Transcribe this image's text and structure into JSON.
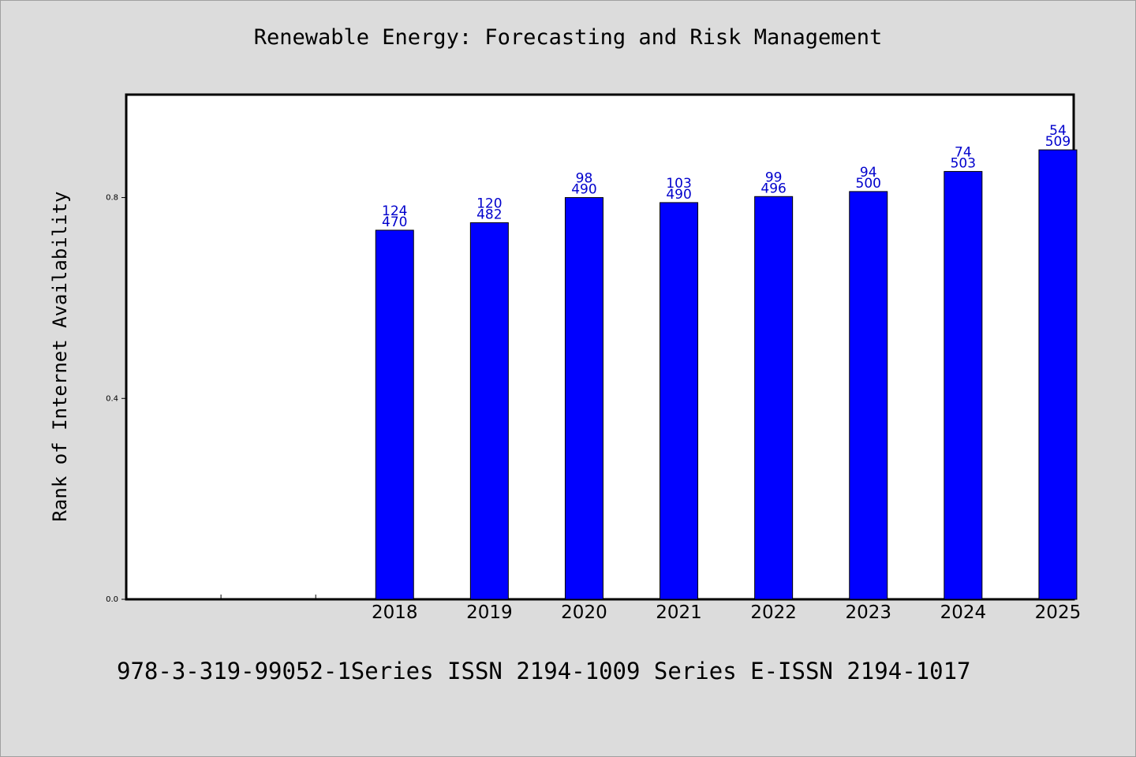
{
  "chart_data": {
    "type": "bar",
    "title": "Renewable Energy: Forecasting and Risk Management",
    "xlabel": "",
    "ylabel": "Rank of Internet Availability",
    "categories": [
      "",
      "",
      "2018",
      "2019",
      "2020",
      "2021",
      "2022",
      "2023",
      "2024",
      "2025"
    ],
    "values": [
      null,
      null,
      0.735,
      0.75,
      0.8,
      0.79,
      0.802,
      0.812,
      0.852,
      0.895
    ],
    "bar_labels": [
      {
        "top": "",
        "bottom": ""
      },
      {
        "top": "",
        "bottom": ""
      },
      {
        "top": "124",
        "bottom": "470"
      },
      {
        "top": "120",
        "bottom": "482"
      },
      {
        "top": "98",
        "bottom": "490"
      },
      {
        "top": "103",
        "bottom": "490"
      },
      {
        "top": "99",
        "bottom": "496"
      },
      {
        "top": "94",
        "bottom": "500"
      },
      {
        "top": "74",
        "bottom": "503"
      },
      {
        "top": "54",
        "bottom": "509"
      }
    ],
    "yticks": [
      0.0,
      0.4,
      0.8
    ],
    "ytick_labels": [
      "0.0",
      "0.4",
      "0.8"
    ],
    "ylim": [
      0,
      1.005
    ],
    "grid": false,
    "legend": "none",
    "colors": {
      "bar": "#0000ff",
      "bar_edge": "#000000",
      "label": "#0000cc",
      "plot_bg": "#ffffff",
      "page_bg": "#dcdcdc"
    }
  },
  "footer_text": "978-3-319-99052-1Series ISSN 2194-1009 Series E-ISSN 2194-1017"
}
